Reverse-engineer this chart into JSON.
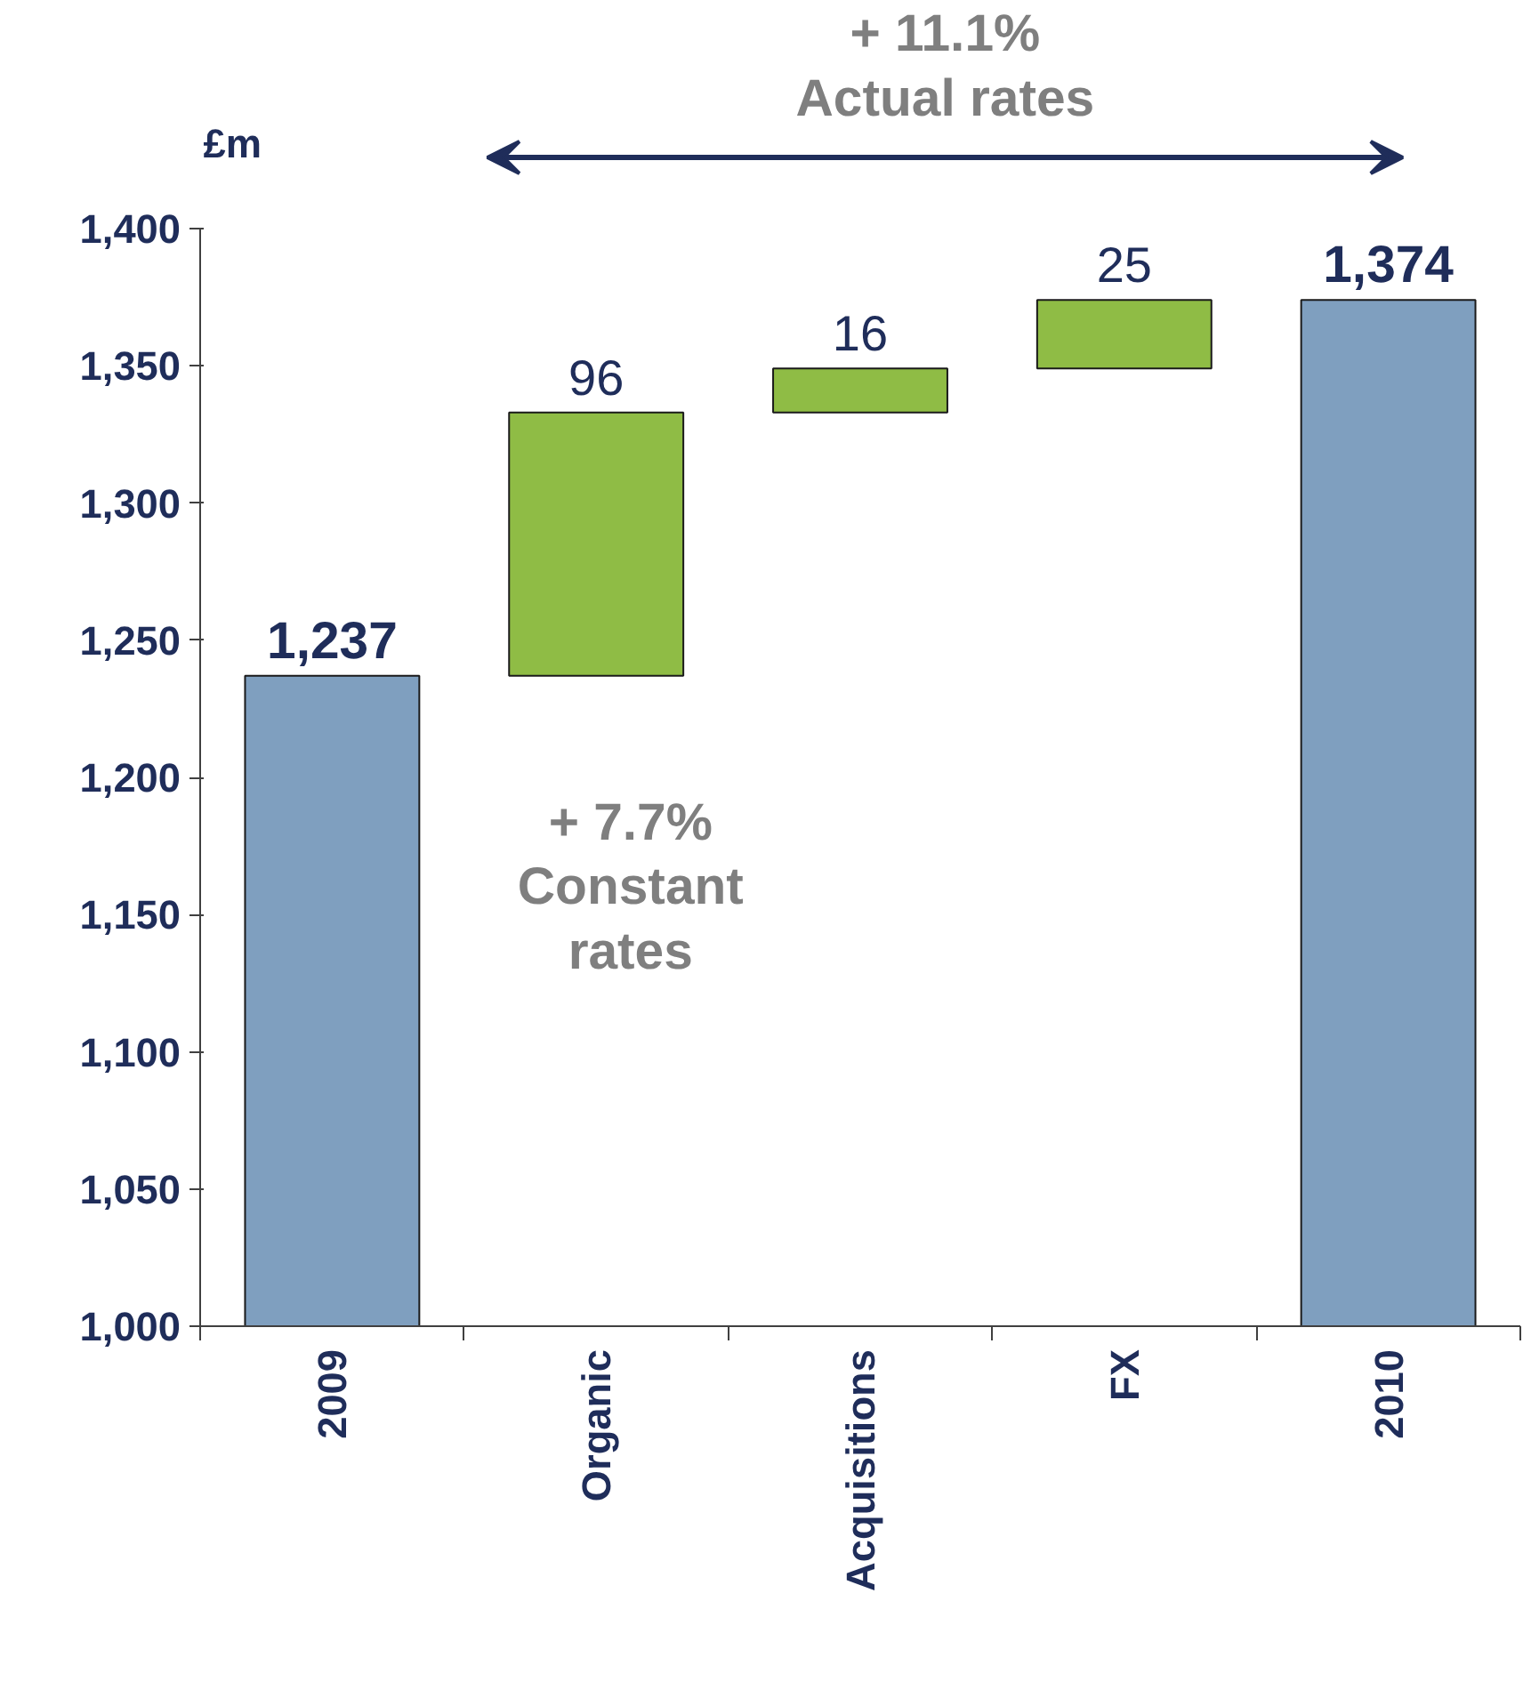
{
  "chart_data": {
    "type": "bar",
    "ylabel": "£m",
    "categories": [
      "2009",
      "Organic",
      "Acquisitions",
      "FX",
      "2010"
    ],
    "values": [
      1237,
      96,
      16,
      25,
      1374
    ],
    "base": [
      null,
      1237,
      1333,
      1349,
      null
    ],
    "colors": [
      "#7f9fbf",
      "#8fbc45",
      "#8fbc45",
      "#8fbc45",
      "#7f9fbf"
    ],
    "value_labels": [
      "1,237",
      "96",
      "16",
      "25",
      "1,374"
    ],
    "ylim": [
      1000,
      1400
    ],
    "yticks": [
      {
        "value": 1000,
        "label": "1,000"
      },
      {
        "value": 1050,
        "label": "1,050"
      },
      {
        "value": 1100,
        "label": "1,100"
      },
      {
        "value": 1150,
        "label": "1,150"
      },
      {
        "value": 1200,
        "label": "1,200"
      },
      {
        "value": 1250,
        "label": "1,250"
      },
      {
        "value": 1300,
        "label": "1,300"
      },
      {
        "value": 1350,
        "label": "1,350"
      },
      {
        "value": 1400,
        "label": "1,400"
      }
    ],
    "grid": false,
    "legend": false,
    "annotations": [
      "+ 11.1%\nActual rates",
      "+ 7.7%\nConstant\nrates"
    ]
  }
}
